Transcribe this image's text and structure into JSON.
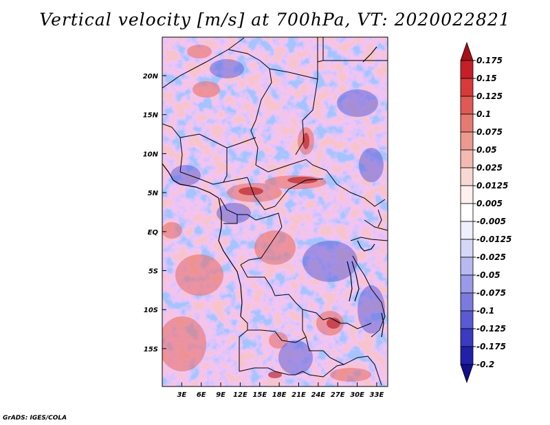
{
  "title": "Vertical velocity [m/s] at 700hPa, VT: 2020022821",
  "credit": "GrADS: IGES/COLA",
  "map": {
    "variable": "vertical velocity",
    "units": "m/s",
    "level": "700hPa",
    "valid_time": "2020022821",
    "lon_range": [
      0,
      35
    ],
    "lat_range": [
      -20,
      25
    ],
    "lon_ticks": [
      "3E",
      "6E",
      "9E",
      "12E",
      "15E",
      "18E",
      "21E",
      "24E",
      "27E",
      "30E",
      "33E"
    ],
    "lat_ticks": [
      "20N",
      "15N",
      "10N",
      "5N",
      "EQ",
      "5S",
      "10S",
      "15S"
    ]
  },
  "colorbar": {
    "levels": [
      "0.175",
      "0.15",
      "0.125",
      "0.1",
      "0.075",
      "0.05",
      "0.025",
      "0.0125",
      "0.005",
      "-0.005",
      "-0.0125",
      "-0.025",
      "-0.05",
      "-0.075",
      "-0.1",
      "-0.125",
      "-0.175",
      "-0.2"
    ],
    "colors": [
      "#a50f15",
      "#c81e27",
      "#d83a3a",
      "#e05a55",
      "#e67a72",
      "#ec9a90",
      "#f3bab2",
      "#f9d8d3",
      "#fdf0ee",
      "#ffffff",
      "#efeffd",
      "#d6d6f8",
      "#b9b9f1",
      "#9a9ae8",
      "#7b7bde",
      "#5a5ad2",
      "#3a3ac2",
      "#2020a8",
      "#10108a"
    ]
  }
}
